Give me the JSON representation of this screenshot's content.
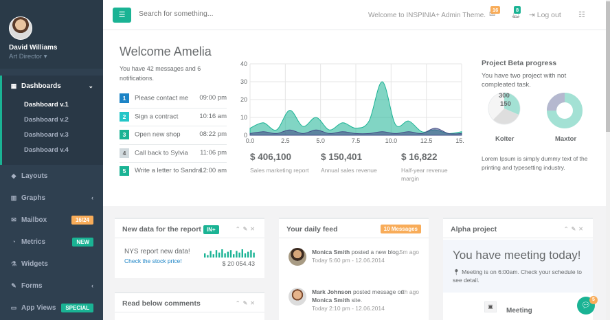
{
  "user": {
    "name": "David Williams",
    "role": "Art Director",
    "role_caret": "▾"
  },
  "sidebar": {
    "dashboards": {
      "label": "Dashboards",
      "chevron": "⌄"
    },
    "sub": [
      "Dashboard v.1",
      "Dashboard v.2",
      "Dashboard v.3",
      "Dashboard v.4"
    ],
    "items": [
      {
        "label": "Layouts",
        "icon": "diamond-icon"
      },
      {
        "label": "Graphs",
        "icon": "bar-chart-icon",
        "chevron": "‹"
      },
      {
        "label": "Mailbox",
        "icon": "envelope-icon",
        "badge": "16/24"
      },
      {
        "label": "Metrics",
        "icon": "pie-chart-icon",
        "badge": "NEW"
      },
      {
        "label": "Widgets",
        "icon": "flask-icon"
      },
      {
        "label": "Forms",
        "icon": "edit-icon",
        "chevron": "‹"
      },
      {
        "label": "App Views",
        "icon": "desktop-icon",
        "badge": "SPECIAL"
      }
    ]
  },
  "topbar": {
    "search_placeholder": "Search for something...",
    "welcome": "Welcome to INSPINIA+ Admin Theme.",
    "mail_count": "16",
    "alerts_count": "8",
    "logout": "Log out"
  },
  "hero": {
    "title": "Welcome Amelia",
    "intro": "You have 42 messages and 6 notifications.",
    "todos": [
      {
        "n": "1",
        "text": "Please contact me",
        "time": "09:00 pm",
        "color": "#1c84c6"
      },
      {
        "n": "2",
        "text": "Sign a contract",
        "time": "10:16 am",
        "color": "#23c6c8"
      },
      {
        "n": "3",
        "text": "Open new shop",
        "time": "08:22 pm",
        "color": "#1ab394"
      },
      {
        "n": "4",
        "text": "Call back to Sylvia",
        "time": "11:06 pm",
        "color": "#d1dade"
      },
      {
        "n": "5",
        "text": "Write a letter to Sandra",
        "time": "12:00 am",
        "color": "#1ab394"
      }
    ],
    "stats": [
      {
        "value": "$ 406,100",
        "label": "Sales marketing report"
      },
      {
        "value": "$ 150,401",
        "label": "Annual sales revenue"
      },
      {
        "value": "$ 16,822",
        "label": "Half-year revenue margin"
      }
    ]
  },
  "chart_data": {
    "type": "area",
    "x": [
      0,
      1,
      2,
      3,
      4,
      5,
      6,
      7,
      8,
      9,
      10,
      11,
      12,
      13,
      14,
      15,
      16
    ],
    "series": [
      {
        "values": [
          4,
          7,
          3,
          14,
          5,
          10,
          3,
          7,
          4,
          8,
          30,
          6,
          8,
          2,
          3,
          1,
          2
        ],
        "color": "#1ab394"
      },
      {
        "values": [
          1,
          2,
          1,
          3,
          1,
          3,
          1,
          2,
          1,
          1,
          2,
          1,
          2,
          1,
          4,
          1,
          1
        ],
        "color": "#464f88"
      }
    ],
    "xticks": [
      "0.0",
      "2.5",
      "5.0",
      "7.5",
      "10.0",
      "12.5",
      "15.0"
    ],
    "yticks": [
      "0",
      "10",
      "20",
      "30",
      "40"
    ],
    "xlim": [
      0,
      16
    ],
    "ylim": [
      0,
      40
    ],
    "grid": true
  },
  "progress": {
    "title": "Project Beta progress",
    "desc": "You have two project with not compleated task.",
    "pies": [
      {
        "name": "Kolter",
        "labels": [
          "300",
          "150"
        ]
      },
      {
        "name": "Maxtor"
      }
    ],
    "foot": "Lorem Ipsum is simply dummy text of the printing and typesetting industry."
  },
  "report": {
    "title": "New data for the report",
    "tag": "IN+",
    "line": "NYS report new data!",
    "link": "Check the stock price!",
    "value": "$ 20 054.43",
    "sparkline": [
      5,
      3,
      8,
      4,
      9,
      6,
      10,
      5,
      7,
      9,
      4,
      8,
      6,
      10,
      5,
      7,
      9,
      6
    ]
  },
  "comments": {
    "title": "Read below comments"
  },
  "feed": {
    "title": "Your daily feed",
    "tag": "10 Messages",
    "items": [
      {
        "name": "Monica Smith",
        "action": "posted a new blog.",
        "ago": "5m ago",
        "date": "Today 5:60 pm - 12.06.2014"
      },
      {
        "name": "Mark Johnson",
        "action": "posted message on",
        "target": "Monica Smith",
        "suffix": "site.",
        "ago": "2h ago",
        "date": "Today 2:10 pm - 12.06.2014"
      }
    ]
  },
  "alpha": {
    "title": "Alpha project",
    "headline": "You have meeting today!",
    "desc": "Meeting is on 6:00am. Check your schedule to see detail.",
    "meeting": "Meeting"
  },
  "chat": {
    "badge": "5"
  }
}
